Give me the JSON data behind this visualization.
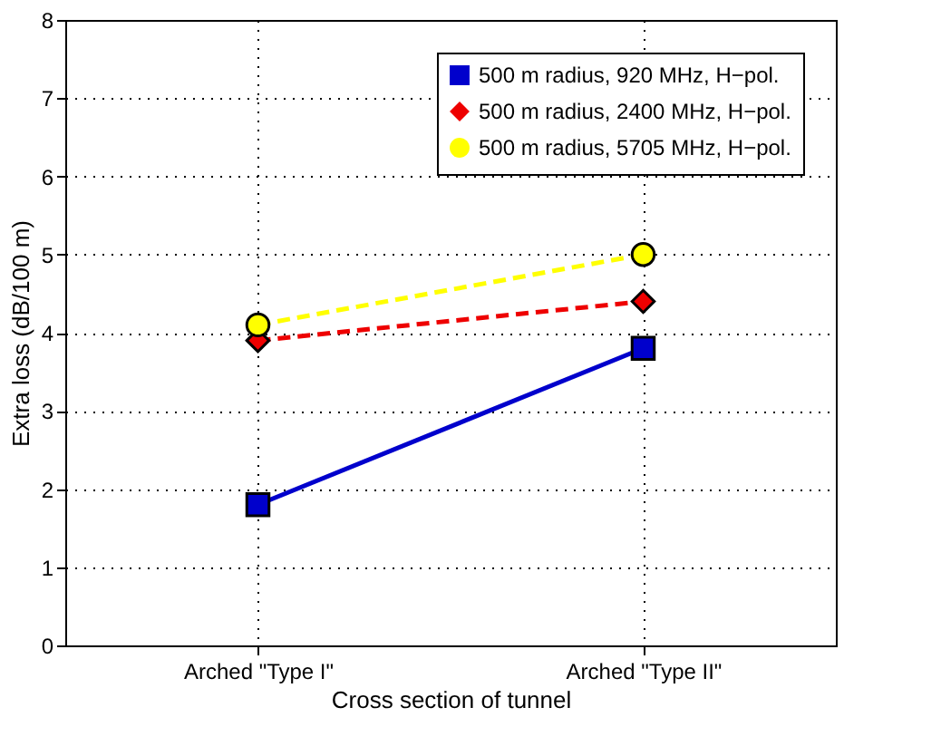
{
  "chart_data": {
    "type": "line",
    "xlabel": "Cross section of tunnel",
    "ylabel": "Extra loss (dB/100 m)",
    "categories": [
      "Arched \"Type I\"",
      "Arched \"Type II\""
    ],
    "series": [
      {
        "name": "500 m radius, 920 MHz, H−pol.",
        "color": "#0000cc",
        "values": [
          1.8,
          3.8
        ],
        "marker": "square",
        "line_style": "solid"
      },
      {
        "name": "500 m radius, 2400 MHz, H−pol.",
        "color": "#ee0000",
        "values": [
          3.9,
          4.4
        ],
        "marker": "diamond",
        "line_style": "dashed"
      },
      {
        "name": "500 m radius, 5705 MHz, H−pol.",
        "color": "#ffff00",
        "values": [
          4.1,
          5.0
        ],
        "marker": "circle",
        "line_style": "dashed"
      }
    ],
    "ylim": [
      0,
      8
    ],
    "yticks": [
      0,
      1,
      2,
      3,
      4,
      5,
      6,
      7,
      8
    ],
    "grid": true,
    "legend": "top right"
  }
}
